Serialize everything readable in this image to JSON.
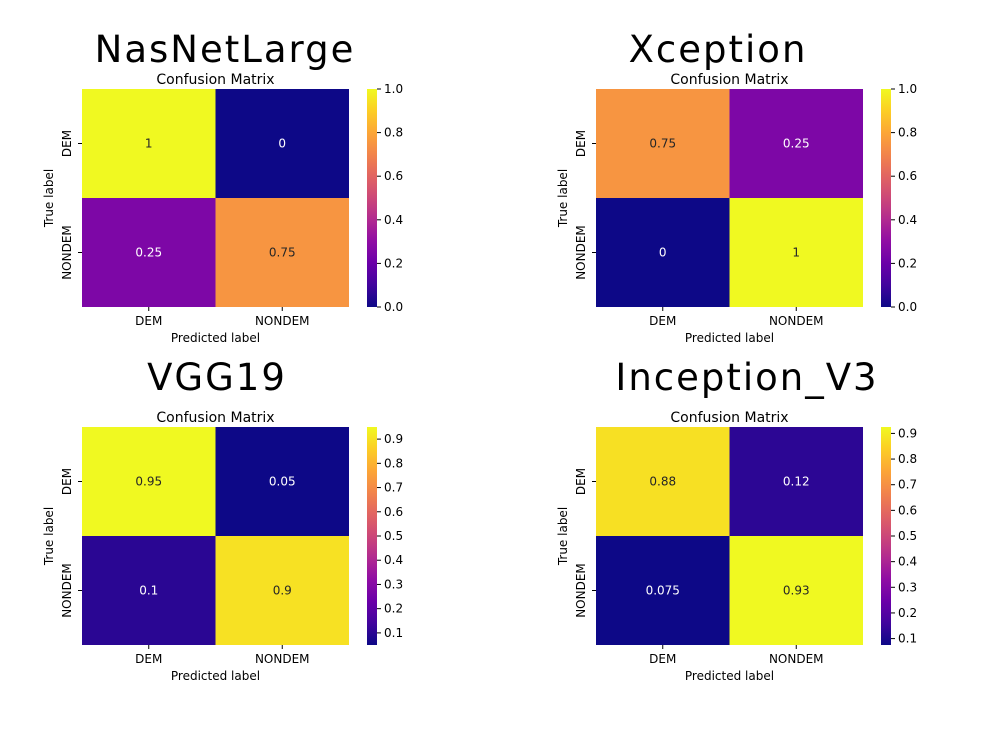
{
  "chart_data": [
    {
      "type": "heatmap",
      "title": "Confusion Matrix",
      "model_title": "NasNetLarge",
      "xlabel": "Predicted label",
      "ylabel": "True label",
      "x_categories": [
        "DEM",
        "NONDEM"
      ],
      "y_categories": [
        "DEM",
        "NONDEM"
      ],
      "values": [
        [
          1,
          0
        ],
        [
          0.25,
          0.75
        ]
      ],
      "value_labels": [
        [
          "1",
          "0"
        ],
        [
          "0.25",
          "0.75"
        ]
      ],
      "colormap": "plasma",
      "colorbar_range": [
        0.0,
        1.0
      ],
      "colorbar_ticks": [
        "0.0",
        "0.2",
        "0.4",
        "0.6",
        "0.8",
        "1.0"
      ]
    },
    {
      "type": "heatmap",
      "title": "Confusion Matrix",
      "model_title": "Xception",
      "xlabel": "Predicted label",
      "ylabel": "True label",
      "x_categories": [
        "DEM",
        "NONDEM"
      ],
      "y_categories": [
        "DEM",
        "NONDEM"
      ],
      "values": [
        [
          0.75,
          0.25
        ],
        [
          0,
          1
        ]
      ],
      "value_labels": [
        [
          "0.75",
          "0.25"
        ],
        [
          "0",
          "1"
        ]
      ],
      "colormap": "plasma",
      "colorbar_range": [
        0.0,
        1.0
      ],
      "colorbar_ticks": [
        "0.0",
        "0.2",
        "0.4",
        "0.6",
        "0.8",
        "1.0"
      ]
    },
    {
      "type": "heatmap",
      "title": "Confusion Matrix",
      "model_title": "VGG19",
      "xlabel": "Predicted label",
      "ylabel": "True label",
      "x_categories": [
        "DEM",
        "NONDEM"
      ],
      "y_categories": [
        "DEM",
        "NONDEM"
      ],
      "values": [
        [
          0.95,
          0.05
        ],
        [
          0.1,
          0.9
        ]
      ],
      "value_labels": [
        [
          "0.95",
          "0.05"
        ],
        [
          "0.1",
          "0.9"
        ]
      ],
      "colormap": "plasma",
      "colorbar_range": [
        0.05,
        0.95
      ],
      "colorbar_ticks": [
        "0.1",
        "0.2",
        "0.3",
        "0.4",
        "0.5",
        "0.6",
        "0.7",
        "0.8",
        "0.9"
      ]
    },
    {
      "type": "heatmap",
      "title": "Confusion Matrix",
      "model_title": "Inception_V3",
      "xlabel": "Predicted label",
      "ylabel": "True label",
      "x_categories": [
        "DEM",
        "NONDEM"
      ],
      "y_categories": [
        "DEM",
        "NONDEM"
      ],
      "values": [
        [
          0.875,
          0.125
        ],
        [
          0.075,
          0.925
        ]
      ],
      "value_labels": [
        [
          "0.88",
          "0.12"
        ],
        [
          "0.075",
          "0.93"
        ]
      ],
      "colormap": "plasma",
      "colorbar_range": [
        0.075,
        0.925
      ],
      "colorbar_ticks": [
        "0.1",
        "0.2",
        "0.3",
        "0.4",
        "0.5",
        "0.6",
        "0.7",
        "0.8",
        "0.9"
      ]
    }
  ]
}
